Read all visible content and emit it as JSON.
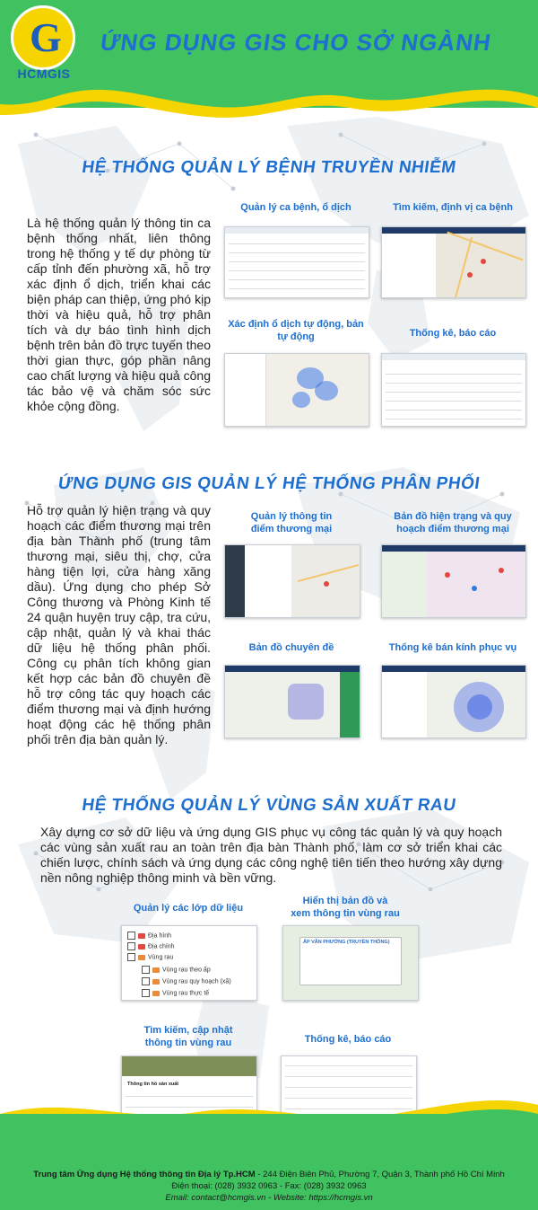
{
  "header": {
    "logo_text": "HCMGIS",
    "title": "ỨNG DỤNG GIS CHO SỞ NGÀNH"
  },
  "section1": {
    "title": "HỆ THỐNG QUẢN LÝ BỆNH TRUYỀN NHIỄM",
    "body": "Là hệ thống quản lý thông tin ca bệnh thống nhất, liên thông trong hệ thống y tế dự phòng từ cấp tỉnh đến phường xã, hỗ trợ xác định ổ dịch, triển khai các biện pháp can thiệp, ứng phó kịp thời và hiệu quả, hỗ trợ phân tích và dự báo tình hình dịch bệnh trên bản đồ trực tuyến theo thời gian thực, góp phần nâng cao chất lượng và hiệu quả công tác bảo vệ và chăm sóc sức khỏe cộng đồng.",
    "captions": [
      "Quản lý ca bệnh, ổ dịch",
      "Tìm kiếm, định vị ca bệnh",
      "Xác định ổ dịch\ntự động, bản tự động",
      "Thống kê, báo cáo"
    ]
  },
  "section2": {
    "title": "ỨNG DỤNG GIS QUẢN LÝ HỆ THỐNG PHÂN PHỐI",
    "body": "Hỗ trợ quản lý hiện trạng và quy hoạch các điểm thương mại trên địa bàn Thành phố (trung tâm thương mại, siêu thị, chợ, cửa hàng tiện lợi, cửa hàng xăng dầu). Ứng dụng cho phép Sở Công thương và Phòng Kinh tế 24 quận huyện truy cập, tra cứu, cập nhật, quản lý và khai thác dữ liệu hệ thống phân phối. Công cụ phân tích không gian kết hợp các bản đồ chuyên đề hỗ trợ công tác quy hoạch các điểm thương mại và định hướng hoạt động các hệ thống phân phối trên địa bàn quản lý.",
    "captions": [
      "Quản lý thông tin\nđiểm thương mại",
      "Bản đồ hiện trạng và quy\nhoạch điểm thương mại",
      "Bản đồ chuyên đề",
      "Thống kê bán kính phục vụ"
    ]
  },
  "section3": {
    "title": "HỆ THỐNG QUẢN LÝ VÙNG SẢN XUẤT RAU",
    "body": "Xây dựng cơ sở dữ liệu và ứng dụng GIS phục vụ công tác quản lý và quy hoạch các vùng sản xuất rau an toàn trên địa bàn Thành phố, làm cơ sở triển khai các chiến lược, chính sách và ứng dụng các công nghệ tiên tiến theo hướng xây dựng nền nông nghiệp thông minh và bền vững.",
    "captions": [
      "Quản lý các lớp dữ liệu",
      "Hiển thị bản đồ và\nxem thông tin vùng rau",
      "Tìm kiếm, cập nhật\nthông tin vùng rau",
      "Thống kê, báo cáo"
    ],
    "layers": [
      "Địa hình",
      "Địa chính",
      "Vùng rau",
      "Vùng rau theo ấp",
      "Vùng rau quy hoạch (xã)",
      "Vùng rau thực tế"
    ],
    "popup_title": "ẤP VĂN PHƯỚNG (TRUYỀN THỐNG)",
    "form_title": "Thông tin hồ sản xuất"
  },
  "footer": {
    "line1_bold": "Trung tâm Ứng dụng Hệ thống thông tin Địa lý Tp.HCM",
    "line1_rest": " - 244 Điện Biên Phủ, Phường 7, Quận 3, Thành phố Hồ Chí Minh",
    "line2": "Điện thoại: (028) 3932 0963 - Fax: (028) 3932 0963",
    "line3_label1": "Email: ",
    "email": "contact@hcmgis.vn",
    "line3_label2": " - Website: ",
    "website": "https://hcmgis.vn"
  },
  "colors": {
    "green": "#3fc25f",
    "yellow": "#f5d400",
    "blue": "#1e6fd0"
  }
}
